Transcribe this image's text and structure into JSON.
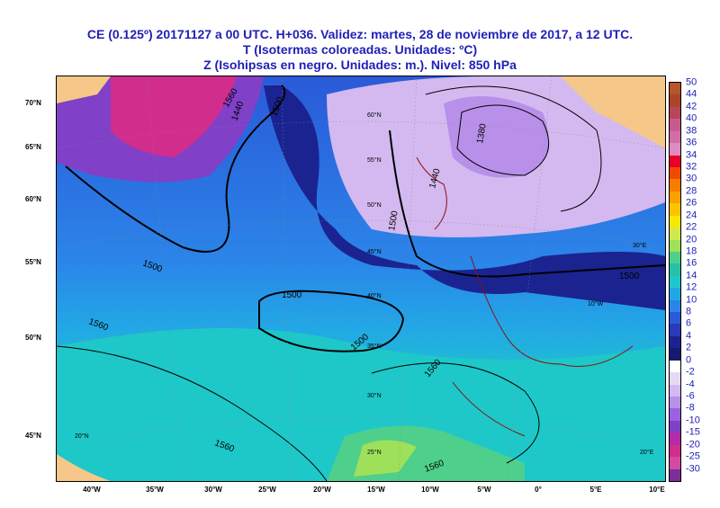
{
  "header": {
    "line1": "CE (0.125º) 20171127  a 00 UTC.  H+036. Validez: martes, 28 de noviembre de 2017,  a  12 UTC.",
    "line2": "T (Isotermas coloreadas. Unidades: ºC)",
    "line3": "Z (Isohipsas en negro. Unidades: m.).   Nivel: 850 hPa"
  },
  "frame_latitudes": [
    "70°N",
    "65°N",
    "60°N",
    "55°N",
    "50°N",
    "45°N"
  ],
  "frame_longitudes": [
    "40°W",
    "35°W",
    "30°W",
    "25°W",
    "20°W",
    "15°W",
    "10°W",
    "5°W",
    "0°",
    "5°E",
    "10°E"
  ],
  "inner_labels": [
    "60°N",
    "55°N",
    "50°N",
    "45°N",
    "40°N",
    "35°N",
    "30°N",
    "25°N",
    "20°N",
    "30°E",
    "20°E",
    "10°W"
  ],
  "isohypse_labels": [
    "1380",
    "1440",
    "1500",
    "1560",
    "1500",
    "1500",
    "1500",
    "1560",
    "1560",
    "1440",
    "1500",
    "1560",
    "1500",
    "1560"
  ],
  "colorbar": {
    "labels": [
      "50",
      "44",
      "42",
      "40",
      "38",
      "36",
      "34",
      "32",
      "30",
      "28",
      "26",
      "24",
      "22",
      "20",
      "18",
      "16",
      "14",
      "12",
      "10",
      "8",
      "6",
      "4",
      "2",
      "0",
      "-2",
      "-4",
      "-6",
      "-8",
      "-10",
      "-15",
      "-20",
      "-25",
      "-30"
    ],
    "colors": [
      "#b5562b",
      "#a9462a",
      "#b9455c",
      "#c85a8c",
      "#d06ea6",
      "#e08bc0",
      "#e8002a",
      "#f04a00",
      "#f77d00",
      "#fba000",
      "#fcc400",
      "#f8e800",
      "#cfe84f",
      "#9fe05a",
      "#4fcf8c",
      "#27c0a8",
      "#1ec8c8",
      "#22a7e6",
      "#2b84e8",
      "#2a5ad8",
      "#2a3ab8",
      "#1b2390",
      "#151a6e",
      "#ffffff",
      "#e7d8f6",
      "#d3b9f0",
      "#b890ea",
      "#9a62e2",
      "#8040c8",
      "#b52aa8",
      "#d12d8c",
      "#d44aa0",
      "#7a2f99"
    ]
  }
}
